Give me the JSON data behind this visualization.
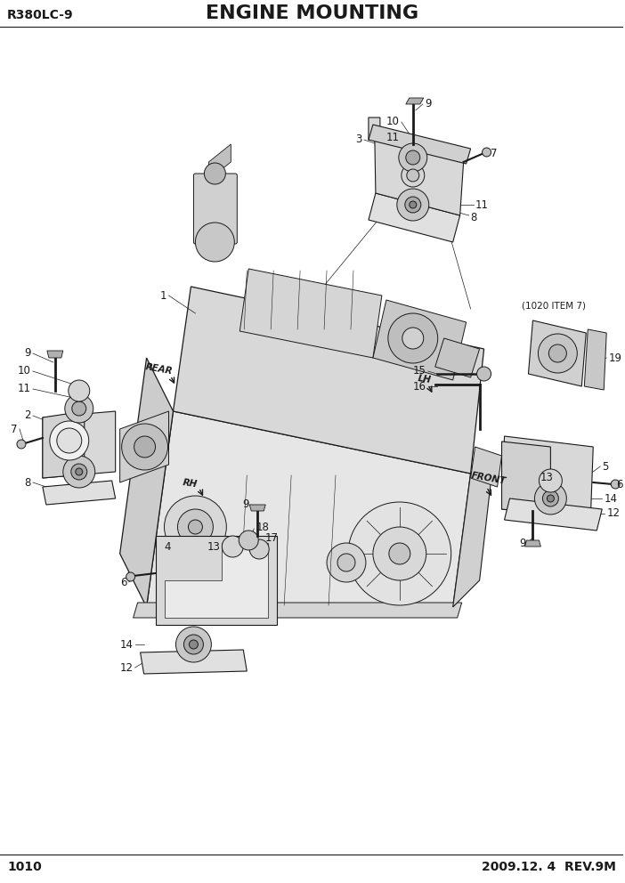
{
  "title": "ENGINE MOUNTING",
  "model": "R380LC-9",
  "page": "1010",
  "date": "2009.12. 4  REV.9M",
  "bg_color": "#ffffff",
  "line_color": "#1a1a1a",
  "title_fontsize": 16,
  "model_fontsize": 10,
  "footer_fontsize": 10,
  "label_fontsize": 8.5,
  "note_label": "(1020 ITEM 7)"
}
